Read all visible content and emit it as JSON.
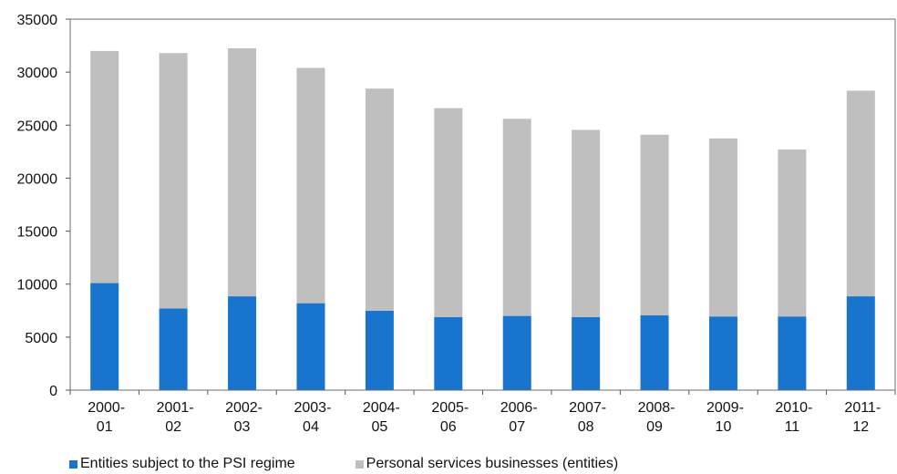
{
  "chart_data": {
    "type": "bar",
    "stacked": true,
    "categories": [
      [
        "2000-",
        "01"
      ],
      [
        "2001-",
        "02"
      ],
      [
        "2002-",
        "03"
      ],
      [
        "2003-",
        "04"
      ],
      [
        "2004-",
        "05"
      ],
      [
        "2005-",
        "06"
      ],
      [
        "2006-",
        "07"
      ],
      [
        "2007-",
        "08"
      ],
      [
        "2008-",
        "09"
      ],
      [
        "2009-",
        "10"
      ],
      [
        "2010-",
        "11"
      ],
      [
        "2011-",
        "12"
      ]
    ],
    "series": [
      {
        "name": "Entities subject to the PSI regime",
        "color": "#1874cd",
        "values": [
          10100,
          7700,
          8850,
          8200,
          7500,
          6900,
          7000,
          6900,
          7050,
          6950,
          6950,
          8850
        ]
      },
      {
        "name": "Personal services businesses (entities)",
        "color": "#bfbfbf",
        "values": [
          21900,
          24100,
          23400,
          22200,
          20950,
          19700,
          18600,
          17650,
          17050,
          16800,
          15750,
          19400
        ]
      }
    ],
    "yticks": [
      "0",
      "5000",
      "10000",
      "15000",
      "20000",
      "25000",
      "30000",
      "35000"
    ],
    "ylim": [
      0,
      35000
    ],
    "grid": false,
    "legend_position": "bottom"
  }
}
